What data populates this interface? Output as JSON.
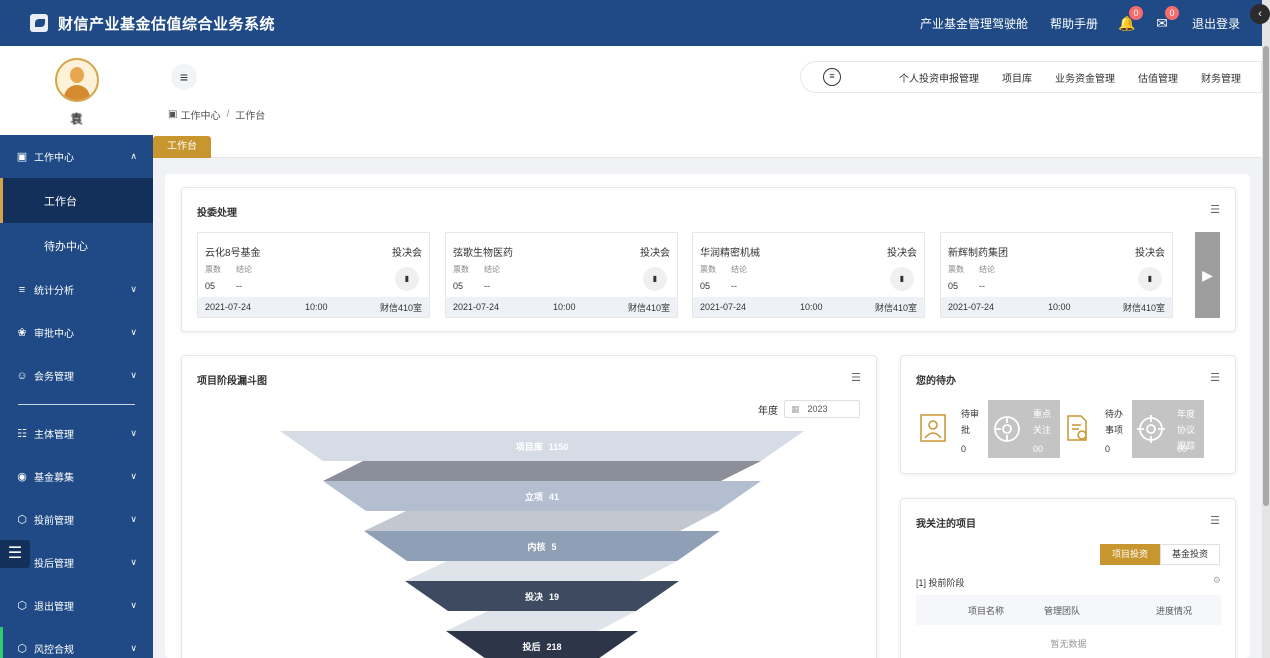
{
  "app": {
    "title": "财信产业基金估值综合业务系统"
  },
  "topbar": {
    "links": [
      "产业基金管理驾驶舱",
      "帮助手册"
    ],
    "bell_count": "0",
    "msg_count": "0",
    "logout": "退出登录"
  },
  "user": {
    "name": "袁"
  },
  "sidebar": {
    "items": [
      {
        "label": "工作中心",
        "icon": "monitor-icon",
        "expanded": true
      },
      {
        "label": "工作台",
        "sub": true,
        "active": true
      },
      {
        "label": "待办中心",
        "sub": true
      },
      {
        "label": "统计分析",
        "icon": "layers-icon"
      },
      {
        "label": "审批中心",
        "icon": "approve-icon"
      },
      {
        "label": "会务管理",
        "icon": "people-icon"
      },
      {
        "label": "主体管理",
        "icon": "org-icon"
      },
      {
        "label": "基金募集",
        "icon": "coin-icon"
      },
      {
        "label": "投前管理",
        "icon": "cube-icon"
      },
      {
        "label": "投后管理",
        "icon": "cube-icon"
      },
      {
        "label": "退出管理",
        "icon": "cube-icon"
      },
      {
        "label": "风控合规",
        "icon": "cube-icon"
      }
    ]
  },
  "topnav": {
    "links": [
      "个人投资申报管理",
      "项目库",
      "业务资金管理",
      "估值管理",
      "财务管理"
    ]
  },
  "breadcrumb": {
    "root": "工作中心",
    "sep": "/",
    "current": "工作台"
  },
  "tabs": {
    "active": "工作台"
  },
  "meetings": {
    "title": "投委处理",
    "labels": {
      "votes": "票数",
      "conclusion": "结论"
    },
    "items": [
      {
        "name": "云化8号基金",
        "type": "投决会",
        "votes": "05",
        "conclusion": "--",
        "date": "2021-07-24",
        "time": "10:00",
        "room": "财信410室"
      },
      {
        "name": "弦歌生物医药",
        "type": "投决会",
        "votes": "05",
        "conclusion": "--",
        "date": "2021-07-24",
        "time": "10:00",
        "room": "财信410室"
      },
      {
        "name": "华润精密机械",
        "type": "投决会",
        "votes": "05",
        "conclusion": "--",
        "date": "2021-07-24",
        "time": "10:00",
        "room": "财信410室"
      },
      {
        "name": "新辉制药集团",
        "type": "投决会",
        "votes": "05",
        "conclusion": "--",
        "date": "2021-07-24",
        "time": "10:00",
        "room": "财信410室"
      }
    ]
  },
  "funnel": {
    "title": "项目阶段漏斗图",
    "year_label": "年度",
    "year": "2023",
    "colors": [
      "#d6dce6",
      "#b3bfd1",
      "#8f9fb6",
      "#3d4a60",
      "#2d3648"
    ]
  },
  "chart_data": {
    "type": "funnel",
    "categories": [
      "项目库",
      "立项",
      "内核",
      "投决",
      "投后"
    ],
    "values": [
      1150,
      41,
      5,
      19,
      218
    ]
  },
  "todo": {
    "title": "您的待办",
    "tiles": [
      {
        "label": "待审批",
        "value": "0",
        "icon": "approver-icon",
        "grey": false
      },
      {
        "label": "重点关注",
        "value": "00",
        "icon": "target-icon",
        "grey": true
      },
      {
        "label": "待办事项",
        "value": "0",
        "icon": "document-check-icon",
        "grey": false
      },
      {
        "label": "年度协议 跟踪",
        "value": "00",
        "icon": "crosshair-icon",
        "grey": true
      }
    ]
  },
  "watch": {
    "title": "我关注的项目",
    "seg": [
      "项目投资",
      "基金投资"
    ],
    "stage": "[1] 投前阶段",
    "columns": [
      "项目名称",
      "管理团队",
      "进度情况"
    ],
    "empty": "暂无数据"
  }
}
